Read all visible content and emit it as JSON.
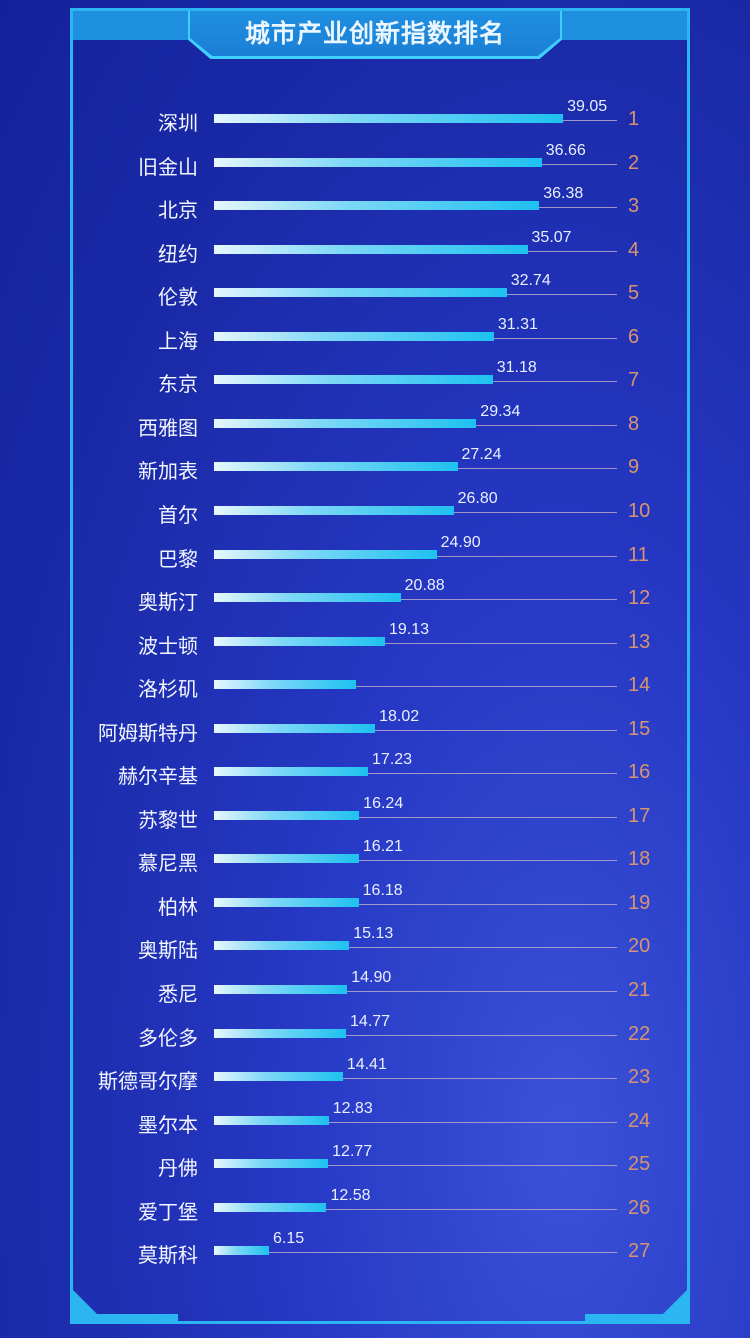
{
  "title": "城市产业创新指数排名",
  "chart_data": {
    "type": "bar",
    "orientation": "horizontal",
    "title": "城市产业创新指数排名",
    "xlabel": "",
    "ylabel": "",
    "categories": [
      "深圳",
      "旧金山",
      "北京",
      "纽约",
      "伦敦",
      "上海",
      "东京",
      "西雅图",
      "新加表",
      "首尔",
      "巴黎",
      "奥斯汀",
      "波士顿",
      "洛杉矶",
      "阿姆斯特丹",
      "赫尔辛基",
      "苏黎世",
      "慕尼黑",
      "柏林",
      "奥斯陆",
      "悉尼",
      "多伦多",
      "斯德哥尔摩",
      "墨尔本",
      "丹佛",
      "爱丁堡",
      "莫斯科"
    ],
    "values": [
      39.05,
      36.66,
      36.38,
      35.07,
      32.74,
      31.31,
      31.18,
      29.34,
      27.24,
      26.8,
      24.9,
      20.88,
      19.13,
      null,
      18.02,
      17.23,
      16.24,
      16.21,
      16.18,
      15.13,
      14.9,
      14.77,
      14.41,
      12.83,
      12.77,
      12.58,
      6.15
    ],
    "value_labels": [
      "39.05",
      "36.66",
      "36.38",
      "35.07",
      "32.74",
      "31.31",
      "31.18",
      "29.34",
      "27.24",
      "26.80",
      "24.90",
      "20.88",
      "19.13",
      "",
      "18.02",
      "17.23",
      "16.24",
      "16.21",
      "16.18",
      "15.13",
      "14.90",
      "14.77",
      "14.41",
      "12.83",
      "12.77",
      "12.58",
      "6.15"
    ],
    "ranks": [
      "1",
      "2",
      "3",
      "4",
      "5",
      "6",
      "7",
      "8",
      "9",
      "10",
      "11",
      "12",
      "13",
      "14",
      "15",
      "16",
      "17",
      "18",
      "19",
      "20",
      "21",
      "22",
      "23",
      "24",
      "25",
      "26",
      "27"
    ],
    "grid": false,
    "legend": null
  },
  "colors": {
    "bar_end": "#1ec1f0",
    "bar_start": "#e6f7ff",
    "frame": "#2bb6f2",
    "rank": "#d9946f",
    "background": "#1a2aa8"
  }
}
